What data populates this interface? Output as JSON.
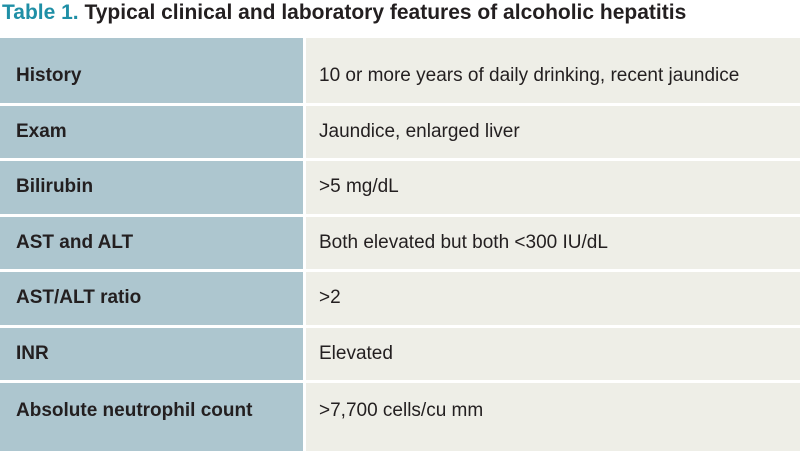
{
  "header": {
    "label": "Table 1.",
    "title": "Typical clinical and laboratory features of alcoholic hepatitis"
  },
  "table": {
    "rows": [
      [
        "History",
        "10 or more years of daily drinking, recent jaundice"
      ],
      [
        "Exam",
        "Jaundice, enlarged liver"
      ],
      [
        "Bilirubin",
        ">5 mg/dL"
      ],
      [
        "AST and ALT",
        "Both elevated but both <300 IU/dL"
      ],
      [
        "AST/ALT ratio",
        ">2"
      ],
      [
        "INR",
        "Elevated"
      ],
      [
        "Absolute neutrophil count",
        ">7,700 cells/cu mm"
      ]
    ]
  }
}
